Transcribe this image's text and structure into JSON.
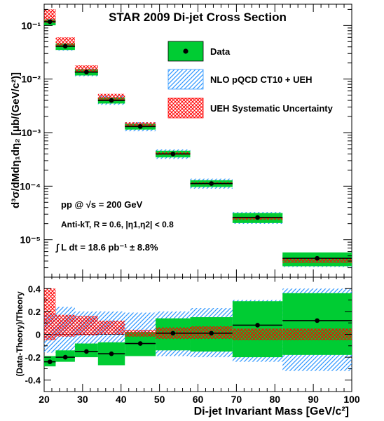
{
  "chart_data": {
    "type": "scatter",
    "title": "STAR 2009 Di-jet Cross Section",
    "xlabel": "Di-jet Invariant Mass [GeV/c²]",
    "xlim": [
      20,
      100
    ],
    "x_ticks": [
      "20",
      "30",
      "40",
      "50",
      "60",
      "70",
      "80",
      "90",
      "100"
    ],
    "top_panel": {
      "ylabel": "d³σ/dMdη₁dη₂ [μb/(GeV/c²)]",
      "yscale": "log",
      "ylim": [
        2e-06,
        0.25
      ],
      "y_tick_labels": [
        "10⁻⁵",
        "10⁻⁴",
        "10⁻³",
        "10⁻²",
        "10⁻¹"
      ],
      "legend": {
        "position": "top-right",
        "entries": [
          "Data",
          "NLO pQCD CT10 + UEH",
          "UEH Systematic Uncertainty"
        ]
      },
      "annotations": [
        "pp @ √s = 200 GeV",
        "Anti-kT, R = 0.6, |η1,η2| < 0.8",
        "∫ L dt = 18.6 pb⁻¹ ± 8.8%"
      ],
      "bins": [
        {
          "lo": 19,
          "hi": 23,
          "data": 0.118,
          "sys_lo": 0.101,
          "sys_hi": 0.13,
          "nlo_lo": 0.102,
          "nlo_hi": 0.133,
          "ueh_lo": 0.112,
          "ueh_hi": 0.2
        },
        {
          "lo": 23,
          "hi": 28,
          "data": 0.041,
          "sys_lo": 0.035,
          "sys_hi": 0.046,
          "nlo_lo": 0.034,
          "nlo_hi": 0.046,
          "ueh_lo": 0.04,
          "ueh_hi": 0.06
        },
        {
          "lo": 28,
          "hi": 34,
          "data": 0.0135,
          "sys_lo": 0.0117,
          "sys_hi": 0.0152,
          "nlo_lo": 0.0113,
          "nlo_hi": 0.0157,
          "ueh_lo": 0.0132,
          "ueh_hi": 0.018
        },
        {
          "lo": 34,
          "hi": 41,
          "data": 0.004,
          "sys_lo": 0.0035,
          "sys_hi": 0.0045,
          "nlo_lo": 0.0033,
          "nlo_hi": 0.0049,
          "ueh_lo": 0.0039,
          "ueh_hi": 0.0053
        },
        {
          "lo": 41,
          "hi": 49,
          "data": 0.0013,
          "sys_lo": 0.00114,
          "sys_hi": 0.00146,
          "nlo_lo": 0.00106,
          "nlo_hi": 0.00157,
          "ueh_lo": 0.00127,
          "ueh_hi": 0.00156
        },
        {
          "lo": 49,
          "hi": 58,
          "data": 0.0004,
          "sys_lo": 0.000345,
          "sys_hi": 0.00046,
          "nlo_lo": 0.000323,
          "nlo_hi": 0.000485,
          "ueh_lo": 0.000385,
          "ueh_hi": 0.00043
        },
        {
          "lo": 58,
          "hi": 69,
          "data": 0.000112,
          "sys_lo": 9.65e-05,
          "sys_hi": 0.000129,
          "nlo_lo": 9e-05,
          "nlo_hi": 0.000138,
          "ueh_lo": 0.000108,
          "ueh_hi": 0.000118
        },
        {
          "lo": 69,
          "hi": 82,
          "data": 2.6e-05,
          "sys_lo": 2.05e-05,
          "sys_hi": 3.15e-05,
          "nlo_lo": 1.98e-05,
          "nlo_hi": 3.3e-05,
          "ueh_lo": 2.35e-05,
          "ueh_hi": 2.68e-05
        },
        {
          "lo": 82,
          "hi": 100,
          "data": 4.5e-06,
          "sys_lo": 3.2e-06,
          "sys_hi": 5.8e-06,
          "nlo_lo": 3.1e-06,
          "nlo_hi": 5.4e-06,
          "ueh_lo": 3.7e-06,
          "ueh_hi": 4.6e-06
        }
      ]
    },
    "bottom_panel": {
      "ylabel": "(Data-Theory)/Theory",
      "ylim": [
        -0.5,
        0.5
      ],
      "y_ticks": [
        -0.4,
        -0.2,
        0,
        0.2,
        0.4
      ],
      "y_tick_labels": [
        "-0.4",
        "-0.2",
        "0",
        "0.2",
        "0.4"
      ],
      "bins": [
        {
          "lo": 19,
          "hi": 23,
          "ratio": -0.24,
          "sys_lo": -0.28,
          "sys_hi": -0.19,
          "nlo_lo": -0.16,
          "nlo_hi": 0.18,
          "ueh_lo": -0.05,
          "ueh_hi": 0.4
        },
        {
          "lo": 23,
          "hi": 28,
          "ratio": -0.2,
          "sys_lo": -0.24,
          "sys_hi": -0.14,
          "nlo_lo": -0.15,
          "nlo_hi": 0.24,
          "ueh_lo": -0.02,
          "ueh_hi": 0.17
        },
        {
          "lo": 28,
          "hi": 34,
          "ratio": -0.15,
          "sys_lo": -0.2,
          "sys_hi": -0.08,
          "nlo_lo": -0.15,
          "nlo_hi": 0.2,
          "ueh_lo": -0.01,
          "ueh_hi": 0.16
        },
        {
          "lo": 34,
          "hi": 41,
          "ratio": -0.17,
          "sys_lo": -0.27,
          "sys_hi": -0.07,
          "nlo_lo": -0.16,
          "nlo_hi": 0.2,
          "ueh_lo": 0.0,
          "ueh_hi": 0.12
        },
        {
          "lo": 41,
          "hi": 49,
          "ratio": -0.08,
          "sys_lo": -0.19,
          "sys_hi": 0.02,
          "nlo_lo": -0.16,
          "nlo_hi": 0.19,
          "ueh_lo": -0.02,
          "ueh_hi": 0.04
        },
        {
          "lo": 49,
          "hi": 58,
          "ratio": 0.01,
          "sys_lo": -0.14,
          "sys_hi": 0.14,
          "nlo_lo": -0.19,
          "nlo_hi": 0.2,
          "ueh_lo": -0.04,
          "ueh_hi": 0.06
        },
        {
          "lo": 58,
          "hi": 69,
          "ratio": 0.01,
          "sys_lo": -0.15,
          "sys_hi": 0.15,
          "nlo_lo": -0.2,
          "nlo_hi": 0.23,
          "ueh_lo": -0.04,
          "ueh_hi": 0.07
        },
        {
          "lo": 69,
          "hi": 82,
          "ratio": 0.08,
          "sys_lo": -0.2,
          "sys_hi": 0.29,
          "nlo_lo": -0.24,
          "nlo_hi": 0.3,
          "ueh_lo": -0.05,
          "ueh_hi": 0.05
        },
        {
          "lo": 82,
          "hi": 100,
          "ratio": 0.12,
          "sys_lo": -0.18,
          "sys_hi": 0.36,
          "nlo_lo": -0.32,
          "nlo_hi": 0.4,
          "ueh_lo": -0.05,
          "ueh_hi": 0.05
        }
      ]
    },
    "colors": {
      "data_band": "#00cc33",
      "nlo_hatch": "#3399ff",
      "ueh_cross": "#ff0000",
      "marker": "#000000"
    }
  }
}
